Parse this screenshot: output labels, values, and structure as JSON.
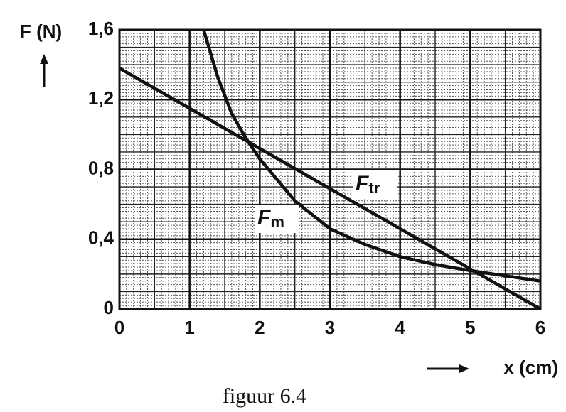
{
  "chart_data": {
    "type": "line",
    "y_label": "F (N)",
    "x_label": "x (cm)",
    "caption": "figuur 6.4",
    "xlim": [
      0,
      6
    ],
    "xticks": [
      0,
      1,
      2,
      3,
      4,
      5,
      6
    ],
    "ylim": [
      0,
      1.6
    ],
    "yticks": [
      0,
      {
        "value": 0.4,
        "label": "0,4"
      },
      {
        "value": 0.8,
        "label": "0,8"
      },
      {
        "value": 1.2,
        "label": "1,2"
      },
      {
        "value": 1.6,
        "label": "1,6"
      }
    ],
    "grid": true,
    "major_grid": {
      "x": 0.5,
      "y": 0.1
    },
    "minor_grid": {
      "x": 0.1,
      "y": 0.02
    },
    "series": [
      {
        "name": "F",
        "subscript": "tr",
        "color": "#111111",
        "x": [
          0,
          6
        ],
        "values": [
          1.38,
          0
        ]
      },
      {
        "name": "F",
        "subscript": "m",
        "color": "#111111",
        "x": [
          1.2,
          1.4,
          1.6,
          1.8,
          2.0,
          2.5,
          3,
          3.5,
          4,
          4.5,
          5,
          5.5,
          6
        ],
        "values": [
          1.6,
          1.33,
          1.12,
          0.98,
          0.86,
          0.62,
          0.46,
          0.37,
          0.3,
          0.255,
          0.22,
          0.19,
          0.16
        ]
      }
    ]
  }
}
